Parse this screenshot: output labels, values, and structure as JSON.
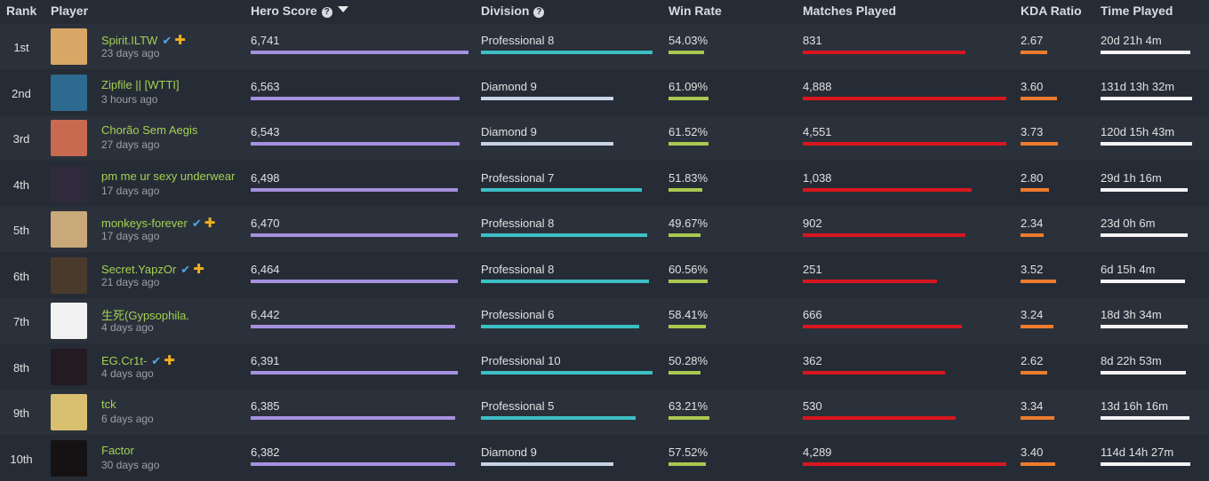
{
  "columns": {
    "rank": "Rank",
    "player": "Player",
    "hero_score": "Hero Score",
    "division": "Division",
    "win_rate": "Win Rate",
    "matches_played": "Matches Played",
    "kda_ratio": "KDA Ratio",
    "time_played": "Time Played"
  },
  "icons": {
    "help": "help-circle-icon",
    "sort": "sort-descending-icon",
    "verified": "checkmark-icon",
    "plus": "plus-icon"
  },
  "glyphs": {
    "help": "?",
    "verified": "✔",
    "plus": "✚"
  },
  "colors": {
    "hero_score_bar": "#a591e0",
    "professional_bar": "#3cc0c4",
    "diamond_bar": "#c8d3e6",
    "win_rate_bar": "#a9c94f",
    "matches_bar": "#d9161e",
    "kda_bar": "#ef7b2c",
    "time_bar": "#f4f4f4",
    "player_name": "#a3d152"
  },
  "rows": [
    {
      "rank": "1st",
      "name": "Spirit.ILTW",
      "verified": true,
      "plus": true,
      "ago": "23 days ago",
      "avatar": "#d9a765",
      "hero_score": "6,741",
      "hero_score_fill": 1.0,
      "division": "Professional 8",
      "division_tier": "professional",
      "division_fill": 1.0,
      "win_rate": "54.03%",
      "win_rate_fill": 0.42,
      "matches": "831",
      "matches_fill": 0.8,
      "kda": "2.67",
      "kda_fill": 0.72,
      "time": "20d 21h 4m",
      "time_fill": 0.98
    },
    {
      "rank": "2nd",
      "name": "Zipfile || [WTTI]",
      "verified": false,
      "plus": false,
      "ago": "3 hours ago",
      "avatar": "#2c6a8f",
      "hero_score": "6,563",
      "hero_score_fill": 0.96,
      "division": "Diamond 9",
      "division_tier": "diamond",
      "division_fill": 0.77,
      "win_rate": "61.09%",
      "win_rate_fill": 0.47,
      "matches": "4,888",
      "matches_fill": 1.0,
      "kda": "3.60",
      "kda_fill": 0.98,
      "time": "131d 13h 32m",
      "time_fill": 1.0
    },
    {
      "rank": "3rd",
      "name": "Chorão Sem Aegis",
      "verified": false,
      "plus": false,
      "ago": "27 days ago",
      "avatar": "#c86a50",
      "hero_score": "6,543",
      "hero_score_fill": 0.96,
      "division": "Diamond 9",
      "division_tier": "diamond",
      "division_fill": 0.77,
      "win_rate": "61.52%",
      "win_rate_fill": 0.47,
      "matches": "4,551",
      "matches_fill": 1.0,
      "kda": "3.73",
      "kda_fill": 1.0,
      "time": "120d 15h 43m",
      "time_fill": 1.0
    },
    {
      "rank": "4th",
      "name": "pm me ur sexy underwear",
      "verified": false,
      "plus": false,
      "ago": "17 days ago",
      "avatar": "#2f2a3c",
      "hero_score": "6,498",
      "hero_score_fill": 0.95,
      "division": "Professional 7",
      "division_tier": "professional",
      "division_fill": 0.94,
      "win_rate": "51.83%",
      "win_rate_fill": 0.4,
      "matches": "1,038",
      "matches_fill": 0.83,
      "kda": "2.80",
      "kda_fill": 0.75,
      "time": "29d 1h 16m",
      "time_fill": 0.95
    },
    {
      "rank": "5th",
      "name": "monkeys-forever",
      "verified": true,
      "plus": true,
      "ago": "17 days ago",
      "avatar": "#c9a97a",
      "hero_score": "6,470",
      "hero_score_fill": 0.95,
      "division": "Professional 8",
      "division_tier": "professional",
      "division_fill": 0.97,
      "win_rate": "49.67%",
      "win_rate_fill": 0.38,
      "matches": "902",
      "matches_fill": 0.8,
      "kda": "2.34",
      "kda_fill": 0.63,
      "time": "23d 0h 6m",
      "time_fill": 0.95
    },
    {
      "rank": "6th",
      "name": "Secret.YapzOr",
      "verified": true,
      "plus": true,
      "ago": "21 days ago",
      "avatar": "#4a3a2c",
      "hero_score": "6,464",
      "hero_score_fill": 0.95,
      "division": "Professional 8",
      "division_tier": "professional",
      "division_fill": 0.98,
      "win_rate": "60.56%",
      "win_rate_fill": 0.46,
      "matches": "251",
      "matches_fill": 0.66,
      "kda": "3.52",
      "kda_fill": 0.95,
      "time": "6d 15h 4m",
      "time_fill": 0.92
    },
    {
      "rank": "7th",
      "name": "生死(Gypsophila.",
      "verified": false,
      "plus": false,
      "ago": "4 days ago",
      "avatar": "#f2f2f2",
      "hero_score": "6,442",
      "hero_score_fill": 0.94,
      "division": "Professional 6",
      "division_tier": "professional",
      "division_fill": 0.92,
      "win_rate": "58.41%",
      "win_rate_fill": 0.44,
      "matches": "666",
      "matches_fill": 0.78,
      "kda": "3.24",
      "kda_fill": 0.87,
      "time": "18d 3h 34m",
      "time_fill": 0.95
    },
    {
      "rank": "8th",
      "name": "EG.Cr1t-",
      "verified": true,
      "plus": true,
      "ago": "4 days ago",
      "avatar": "#241a22",
      "hero_score": "6,391",
      "hero_score_fill": 0.95,
      "division": "Professional 10",
      "division_tier": "professional",
      "division_fill": 1.0,
      "win_rate": "50.28%",
      "win_rate_fill": 0.38,
      "matches": "362",
      "matches_fill": 0.7,
      "kda": "2.62",
      "kda_fill": 0.72,
      "time": "8d 22h 53m",
      "time_fill": 0.93
    },
    {
      "rank": "9th",
      "name": "tck",
      "verified": false,
      "plus": false,
      "ago": "6 days ago",
      "avatar": "#d9c070",
      "hero_score": "6,385",
      "hero_score_fill": 0.94,
      "division": "Professional 5",
      "division_tier": "professional",
      "division_fill": 0.9,
      "win_rate": "63.21%",
      "win_rate_fill": 0.48,
      "matches": "530",
      "matches_fill": 0.75,
      "kda": "3.34",
      "kda_fill": 0.9,
      "time": "13d 16h 16m",
      "time_fill": 0.97
    },
    {
      "rank": "10th",
      "name": "Factor",
      "verified": false,
      "plus": false,
      "ago": "30 days ago",
      "avatar": "#161214",
      "hero_score": "6,382",
      "hero_score_fill": 0.94,
      "division": "Diamond 9",
      "division_tier": "diamond",
      "division_fill": 0.77,
      "win_rate": "57.52%",
      "win_rate_fill": 0.44,
      "matches": "4,289",
      "matches_fill": 1.0,
      "kda": "3.40",
      "kda_fill": 0.92,
      "time": "114d 14h 27m",
      "time_fill": 0.98
    }
  ]
}
